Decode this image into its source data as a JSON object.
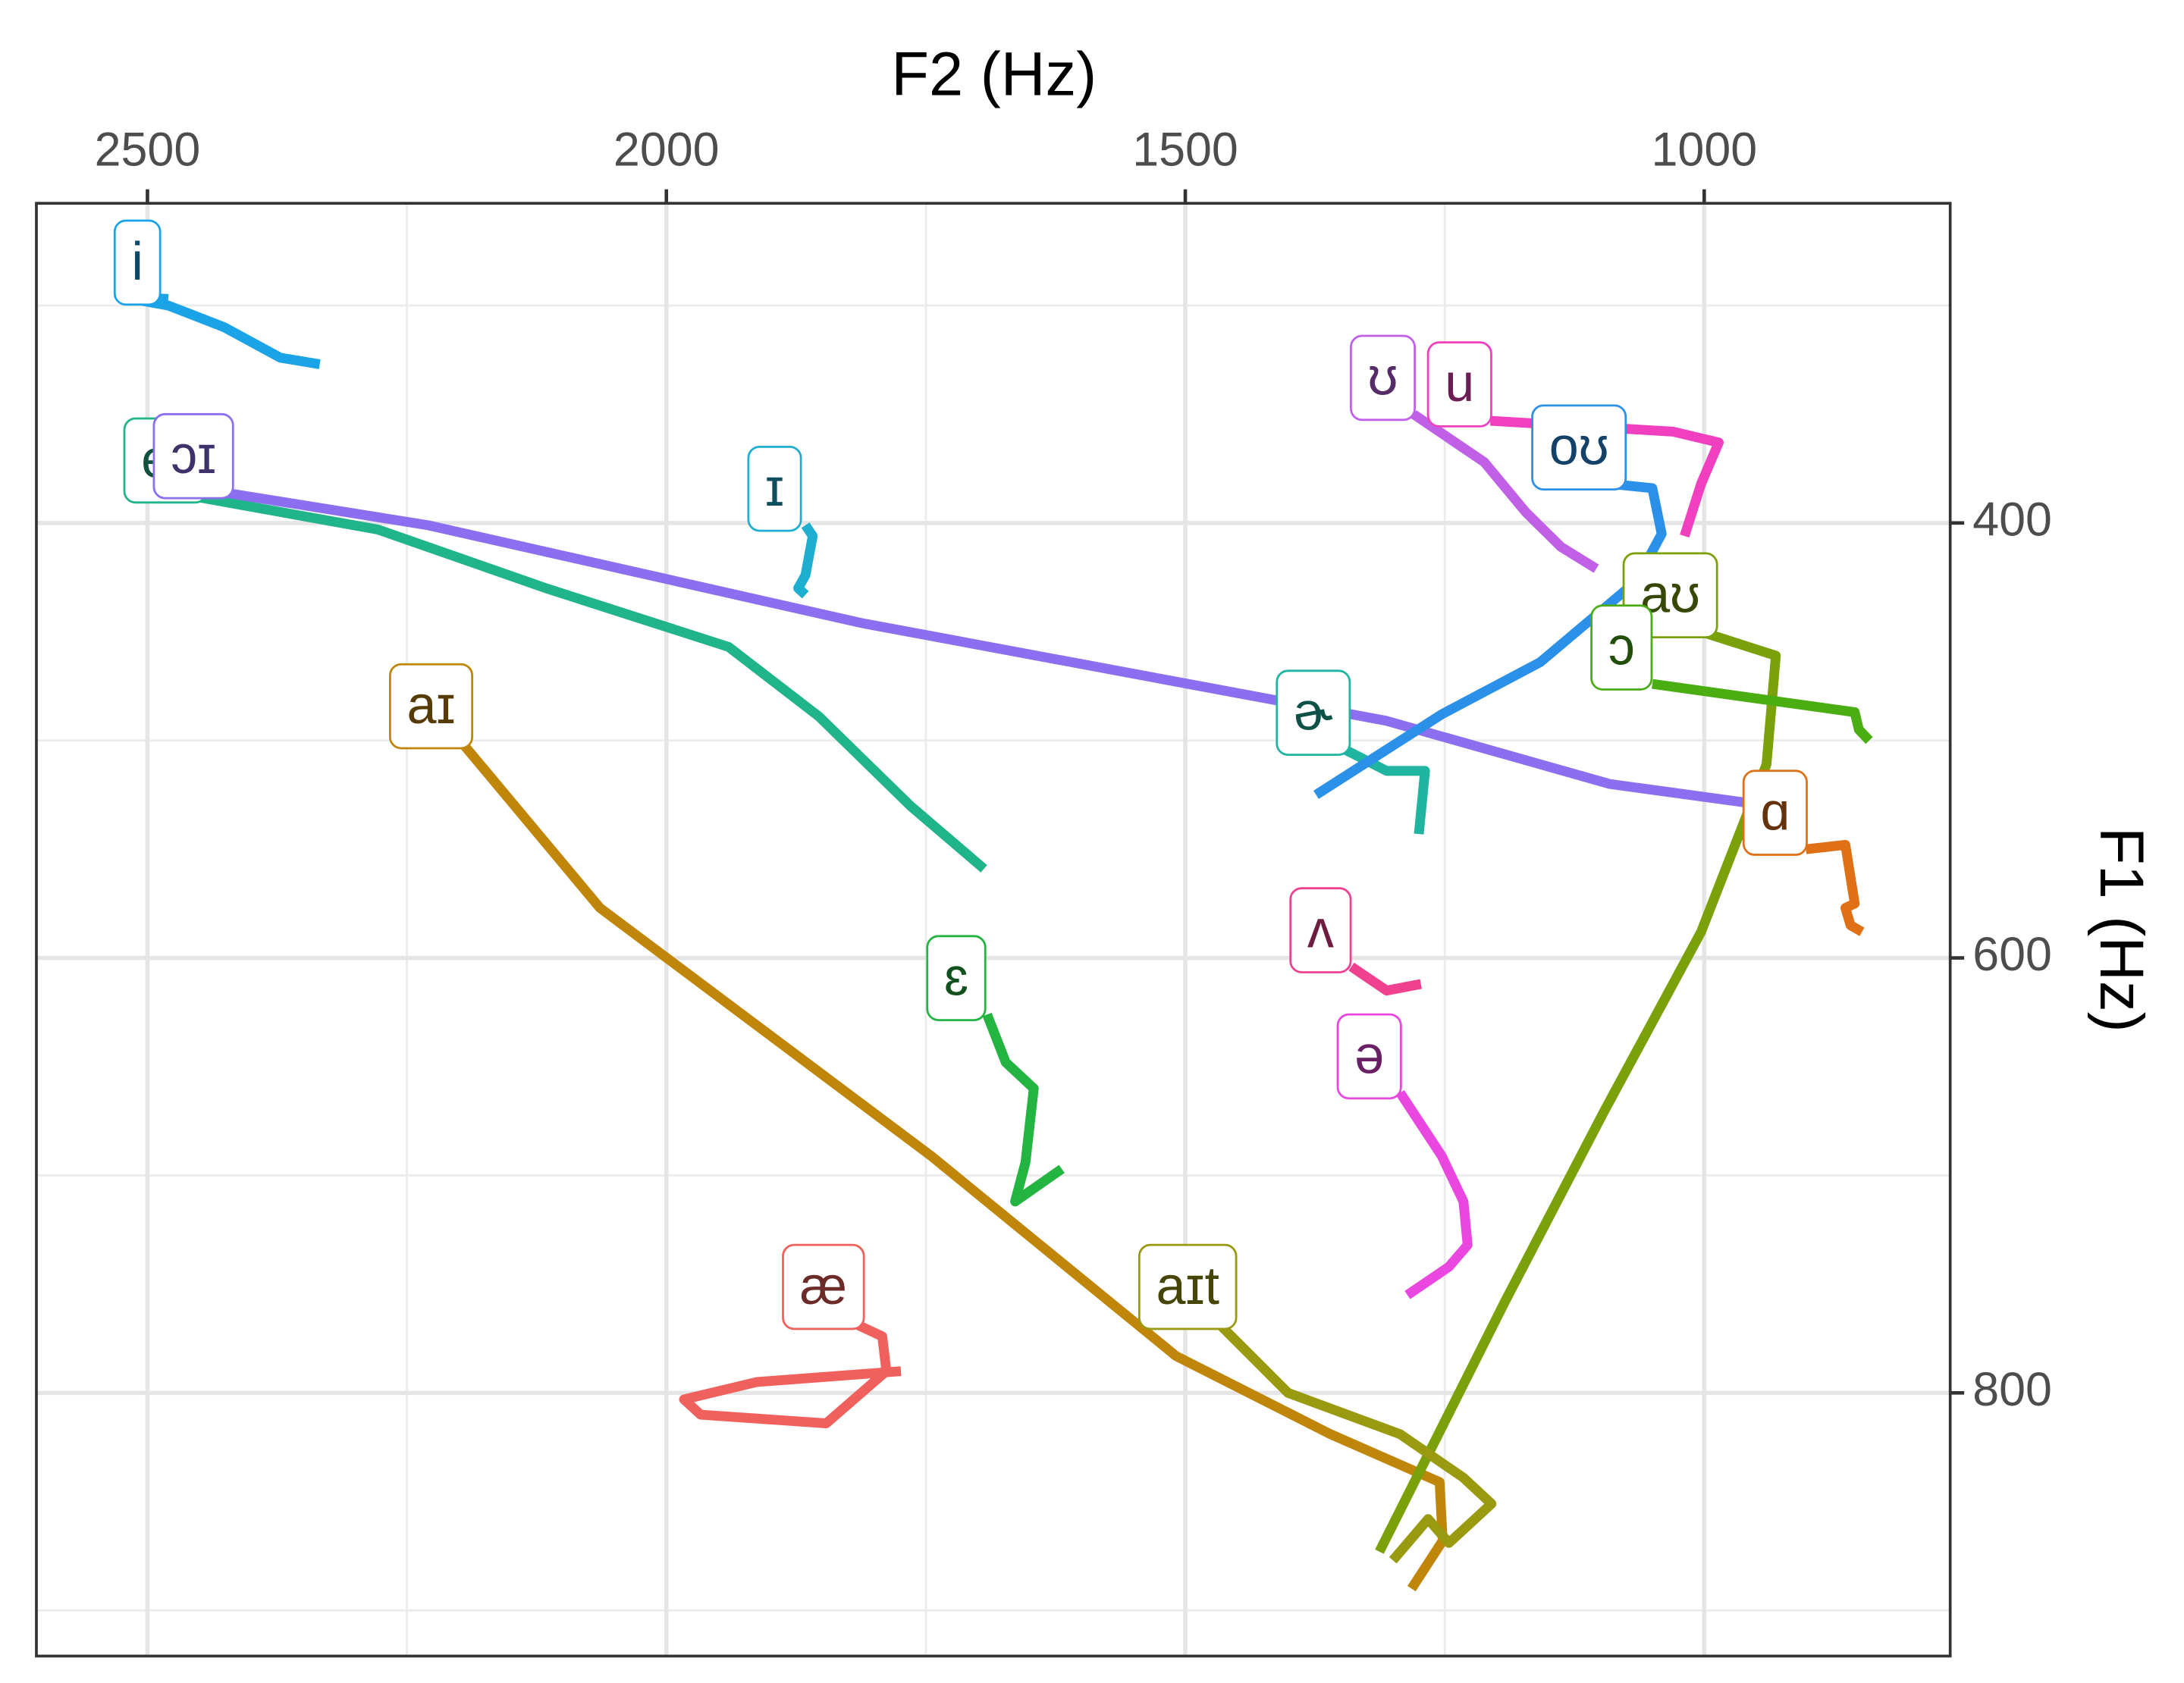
{
  "chart_data": {
    "type": "line",
    "x_label": "F2 (Hz)",
    "y_label": "F1 (Hz)",
    "xlim": [
      2607,
      763
    ],
    "ylim": [
      253,
      921
    ],
    "xticks": [
      2500,
      2000,
      1500,
      1000
    ],
    "yticks": [
      400,
      600,
      800
    ],
    "x_minor_grid": [
      2250,
      1750,
      1250
    ],
    "y_minor_grid": [
      300,
      500,
      700,
      900
    ],
    "grid": true,
    "series": [
      {
        "name": "i",
        "color": "#1ba3e8",
        "x": [
          2480,
          2526,
          2480,
          2426,
          2372,
          2334
        ],
        "values": [
          297,
          296,
          300,
          310,
          324,
          327
        ]
      },
      {
        "name": "eɪ",
        "color": "#1fb48a",
        "x": [
          2453,
          2278,
          2116,
          1940,
          1853,
          1765,
          1694
        ],
        "values": [
          388,
          403,
          430,
          457,
          489,
          530,
          559
        ]
      },
      {
        "name": "ɔɪ",
        "color": "#8b6ff0",
        "x": [
          2426,
          2230,
          1812,
          1306,
          1091,
          923,
          929
        ],
        "values": [
          386,
          401,
          446,
          491,
          520,
          531,
          540
        ]
      },
      {
        "name": "ɪ",
        "color": "#1eaed0",
        "x": [
          1866,
          1859,
          1866,
          1873,
          1866
        ],
        "values": [
          401,
          406,
          424,
          430,
          433
        ]
      },
      {
        "name": "aɪ",
        "color": "#c0860a",
        "x": [
          2197,
          2064,
          1745,
          1509,
          1360,
          1255,
          1252,
          1282
        ],
        "values": [
          501,
          577,
          691,
          783,
          819,
          841,
          868,
          890
        ]
      },
      {
        "name": "ɛ",
        "color": "#23b441",
        "x": [
          1691,
          1673,
          1646,
          1654,
          1664,
          1619
        ],
        "values": [
          626,
          648,
          660,
          694,
          712,
          697
        ]
      },
      {
        "name": "æ",
        "color": "#f0605c",
        "x": [
          1819,
          1792,
          1788,
          1846,
          1967,
          1983,
          1913,
          1774
        ],
        "values": [
          768,
          774,
          790,
          814,
          810,
          803,
          795,
          790
        ]
      },
      {
        "name": "ɚ",
        "color": "#20b5a0",
        "x": [
          1347,
          1306,
          1269,
          1275
        ],
        "values": [
          504,
          514,
          514,
          543
        ]
      },
      {
        "name": "oʊ",
        "color": "#2a90e8",
        "x": [
          1091,
          1050,
          1041,
          1066,
          1158,
          1253,
          1374
        ],
        "values": [
          382,
          384,
          405,
          427,
          464,
          488,
          525
        ]
      },
      {
        "name": "ʊ",
        "color": "#c060e6",
        "x": [
          1280,
          1212,
          1172,
          1138,
          1104
        ],
        "values": [
          350,
          372,
          395,
          411,
          421
        ]
      },
      {
        "name": "u",
        "color": "#f040c0",
        "x": [
          1206,
          1030,
          986,
          1003,
          1019
        ],
        "values": [
          353,
          358,
          363,
          382,
          406
        ]
      },
      {
        "name": "aʊ",
        "color": "#7aa00a",
        "x": [
          1003,
          931,
          940,
          1003,
          1097,
          1192,
          1313
        ],
        "values": [
          450,
          461,
          511,
          588,
          671,
          758,
          873
        ]
      },
      {
        "name": "ɔ",
        "color": "#4aad12",
        "x": [
          1050,
          855,
          851,
          841
        ],
        "values": [
          474,
          487,
          495,
          500
        ]
      },
      {
        "name": "ɑ",
        "color": "#e07016",
        "x": [
          902,
          864,
          855,
          864,
          859,
          848
        ],
        "values": [
          550,
          548,
          575,
          577,
          585,
          588
        ]
      },
      {
        "name": "ʌ",
        "color": "#f04090",
        "x": [
          1340,
          1306,
          1273
        ],
        "values": [
          604,
          615,
          612
        ]
      },
      {
        "name": "ə",
        "color": "#ea46e0",
        "x": [
          1293,
          1253,
          1232,
          1228,
          1246,
          1286
        ],
        "values": [
          662,
          691,
          712,
          732,
          742,
          755
        ]
      },
      {
        "name": "aɪt",
        "color": "#9a9a10",
        "x": [
          1468,
          1401,
          1293,
          1232,
          1205,
          1246,
          1266,
          1300
        ],
        "values": [
          768,
          800,
          819,
          839,
          851,
          869,
          858,
          877
        ]
      }
    ]
  }
}
